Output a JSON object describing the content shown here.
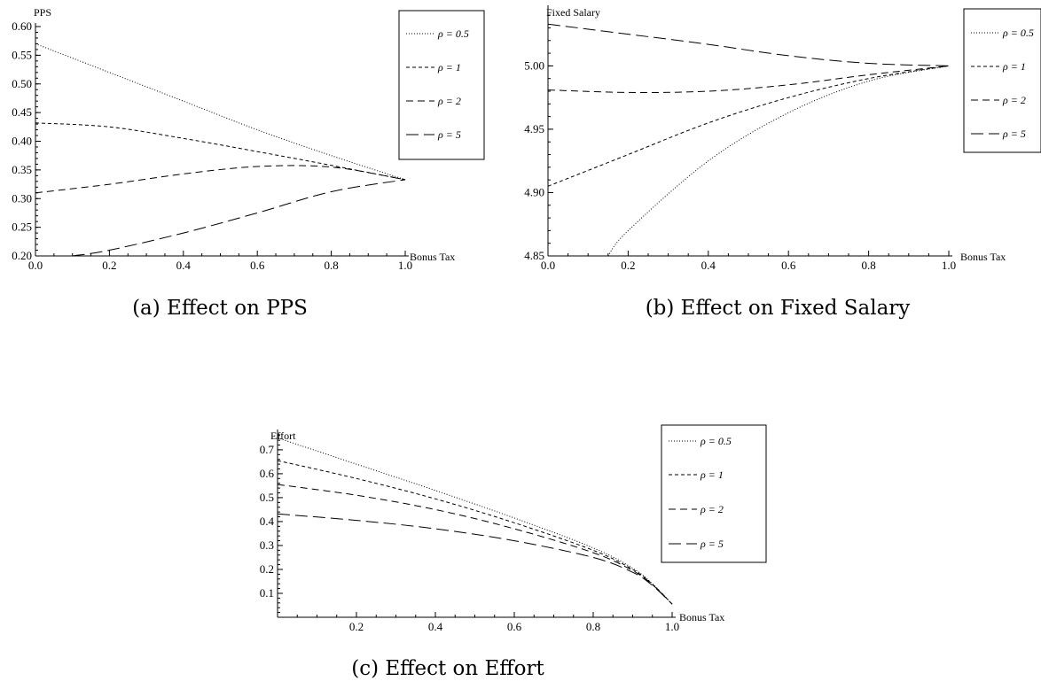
{
  "chart_data": [
    {
      "type": "line",
      "ylabel": "PPS",
      "xlabel": "Bonus Tax",
      "caption": "(a) Effect on PPS",
      "xlim": [
        0,
        1
      ],
      "ylim": [
        0.2,
        0.6
      ],
      "xticks": [
        "0.0",
        "0.2",
        "0.4",
        "0.6",
        "0.8",
        "1.0"
      ],
      "yticks": [
        "0.20",
        "0.25",
        "0.30",
        "0.35",
        "0.40",
        "0.45",
        "0.50",
        "0.55",
        "0.60"
      ],
      "legend_position": "top-right",
      "series": [
        {
          "name": "ρ = 0.5",
          "dash": "1,2",
          "x": [
            0,
            0.2,
            0.4,
            0.6,
            0.8,
            1.0
          ],
          "y": [
            0.57,
            0.52,
            0.47,
            0.42,
            0.375,
            0.333
          ]
        },
        {
          "name": "ρ = 1",
          "dash": "4,3",
          "x": [
            0,
            0.2,
            0.4,
            0.6,
            0.8,
            1.0
          ],
          "y": [
            0.432,
            0.425,
            0.405,
            0.382,
            0.358,
            0.333
          ]
        },
        {
          "name": "ρ = 2",
          "dash": "8,5",
          "x": [
            0,
            0.2,
            0.4,
            0.6,
            0.8,
            1.0
          ],
          "y": [
            0.31,
            0.325,
            0.343,
            0.356,
            0.355,
            0.333
          ]
        },
        {
          "name": "ρ = 5",
          "dash": "14,6",
          "x": [
            0.1,
            0.2,
            0.4,
            0.6,
            0.8,
            1.0
          ],
          "y": [
            0.2,
            0.21,
            0.24,
            0.275,
            0.312,
            0.333
          ]
        }
      ]
    },
    {
      "type": "line",
      "ylabel": "Fixed Salary",
      "xlabel": "Bonus Tax",
      "caption": "(b) Effect on Fixed Salary",
      "xlim": [
        0,
        1
      ],
      "ylim": [
        4.85,
        5.045
      ],
      "xticks": [
        "0.0",
        "0.2",
        "0.4",
        "0.6",
        "0.8",
        "1.0"
      ],
      "yticks": [
        "4.85",
        "4.90",
        "4.95",
        "5.00"
      ],
      "legend_position": "right",
      "series": [
        {
          "name": "ρ = 0.5",
          "dash": "1,2",
          "x": [
            0.15,
            0.2,
            0.4,
            0.6,
            0.8,
            1.0
          ],
          "y": [
            4.85,
            4.87,
            4.925,
            4.963,
            4.988,
            5.0
          ]
        },
        {
          "name": "ρ = 1",
          "dash": "4,3",
          "x": [
            0,
            0.2,
            0.4,
            0.6,
            0.8,
            1.0
          ],
          "y": [
            4.905,
            4.93,
            4.955,
            4.975,
            4.99,
            5.0
          ]
        },
        {
          "name": "ρ = 2",
          "dash": "8,5",
          "x": [
            0,
            0.2,
            0.4,
            0.6,
            0.8,
            1.0
          ],
          "y": [
            4.981,
            4.979,
            4.98,
            4.985,
            4.993,
            5.0
          ]
        },
        {
          "name": "ρ = 5",
          "dash": "14,6",
          "x": [
            0,
            0.2,
            0.4,
            0.6,
            0.8,
            1.0
          ],
          "y": [
            5.033,
            5.025,
            5.017,
            5.008,
            5.002,
            5.0
          ]
        }
      ]
    },
    {
      "type": "line",
      "ylabel": "Effort",
      "xlabel": "Bonus Tax",
      "caption": "(c) Effect on Effort",
      "xlim": [
        0,
        1
      ],
      "ylim": [
        0,
        0.77
      ],
      "xticks": [
        "0.2",
        "0.4",
        "0.6",
        "0.8",
        "1.0"
      ],
      "yticks": [
        "0.1",
        "0.2",
        "0.3",
        "0.4",
        "0.5",
        "0.6",
        "0.7"
      ],
      "legend_position": "top-right",
      "series": [
        {
          "name": "ρ = 0.5",
          "dash": "1,2",
          "x": [
            0,
            0.2,
            0.4,
            0.6,
            0.8,
            0.9,
            0.95,
            1.0
          ],
          "y": [
            0.75,
            0.64,
            0.53,
            0.415,
            0.29,
            0.205,
            0.14,
            0.055
          ]
        },
        {
          "name": "ρ = 1",
          "dash": "4,3",
          "x": [
            0,
            0.2,
            0.4,
            0.6,
            0.8,
            0.9,
            0.95,
            1.0
          ],
          "y": [
            0.655,
            0.58,
            0.495,
            0.395,
            0.28,
            0.2,
            0.138,
            0.055
          ]
        },
        {
          "name": "ρ = 2",
          "dash": "8,5",
          "x": [
            0,
            0.2,
            0.4,
            0.6,
            0.8,
            0.9,
            0.95,
            1.0
          ],
          "y": [
            0.555,
            0.51,
            0.45,
            0.37,
            0.27,
            0.195,
            0.136,
            0.055
          ]
        },
        {
          "name": "ρ = 5",
          "dash": "14,6",
          "x": [
            0,
            0.2,
            0.4,
            0.6,
            0.8,
            0.9,
            0.95,
            1.0
          ],
          "y": [
            0.432,
            0.405,
            0.37,
            0.32,
            0.25,
            0.188,
            0.133,
            0.055
          ]
        }
      ]
    }
  ]
}
